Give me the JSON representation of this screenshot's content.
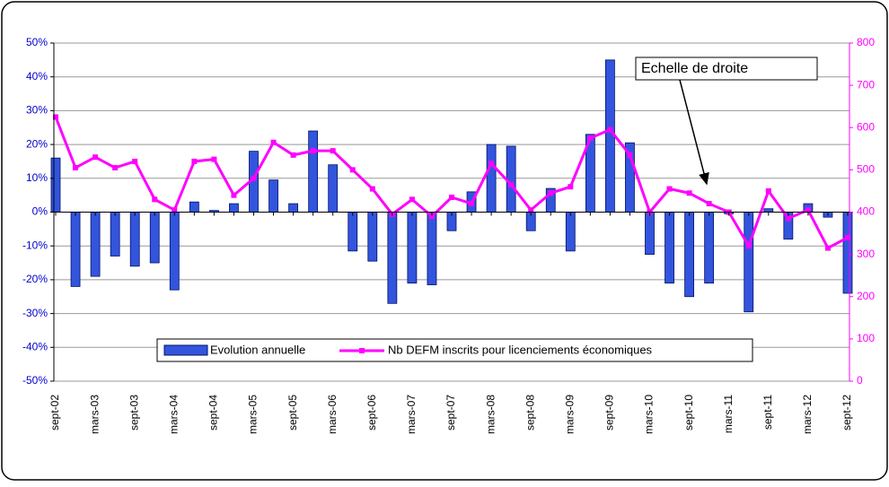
{
  "chart_data": {
    "type": "bar-line",
    "categories": [
      "sept-02",
      null,
      "mars-03",
      null,
      "sept-03",
      null,
      "mars-04",
      null,
      "sept-04",
      null,
      "mars-05",
      null,
      "sept-05",
      null,
      "mars-06",
      null,
      "sept-06",
      null,
      "mars-07",
      null,
      "sept-07",
      null,
      "mars-08",
      null,
      "sept-08",
      null,
      "mars-09",
      null,
      "sept-09",
      null,
      "mars-10",
      null,
      "sept-10",
      null,
      "mars-11",
      null,
      "sept-11",
      null,
      "mars-12",
      null,
      "sept-12"
    ],
    "series": [
      {
        "name": "Evolution annuelle",
        "type": "bar",
        "color": "#3355dd",
        "values": [
          16,
          -22,
          -19,
          -13,
          -16,
          -15,
          -23,
          3,
          0.5,
          2.5,
          18,
          9.5,
          2.5,
          24,
          14,
          -11.5,
          -14.5,
          -27,
          -21,
          -21.5,
          -5.5,
          6,
          20,
          19.5,
          -5.5,
          7,
          -11.5,
          23,
          45,
          20.5,
          -12.5,
          -21,
          -25,
          -21,
          -0.5,
          -29.5,
          1,
          -8,
          2.5,
          -1.5,
          -24
        ]
      },
      {
        "name": "Nb DEFM inscrits pour licenciements économiques",
        "type": "line",
        "axis": "y2",
        "color": "#ff00ff",
        "values": [
          625,
          505,
          530,
          505,
          520,
          430,
          405,
          520,
          525,
          440,
          480,
          565,
          535,
          545,
          545,
          500,
          455,
          395,
          430,
          390,
          435,
          420,
          515,
          465,
          405,
          445,
          460,
          575,
          595,
          535,
          400,
          455,
          445,
          420,
          400,
          320,
          450,
          385,
          405,
          315,
          340
        ]
      }
    ],
    "ylim": [
      -50,
      50
    ],
    "yticks": [
      {
        "value": -50,
        "label": "-50%"
      },
      {
        "value": -40,
        "label": "-40%"
      },
      {
        "value": -30,
        "label": "-30%"
      },
      {
        "value": -20,
        "label": "-20%"
      },
      {
        "value": -10,
        "label": "-10%"
      },
      {
        "value": 0,
        "label": "0%"
      },
      {
        "value": 10,
        "label": "10%"
      },
      {
        "value": 20,
        "label": "20%"
      },
      {
        "value": 30,
        "label": "30%"
      },
      {
        "value": 40,
        "label": "40%"
      },
      {
        "value": 50,
        "label": "50%"
      }
    ],
    "y2lim": [
      0,
      800
    ],
    "y2ticks": [
      0,
      100,
      200,
      300,
      400,
      500,
      600,
      700,
      800
    ],
    "annotation": "Echelle de droite",
    "grid": true,
    "legend": "bottom"
  }
}
